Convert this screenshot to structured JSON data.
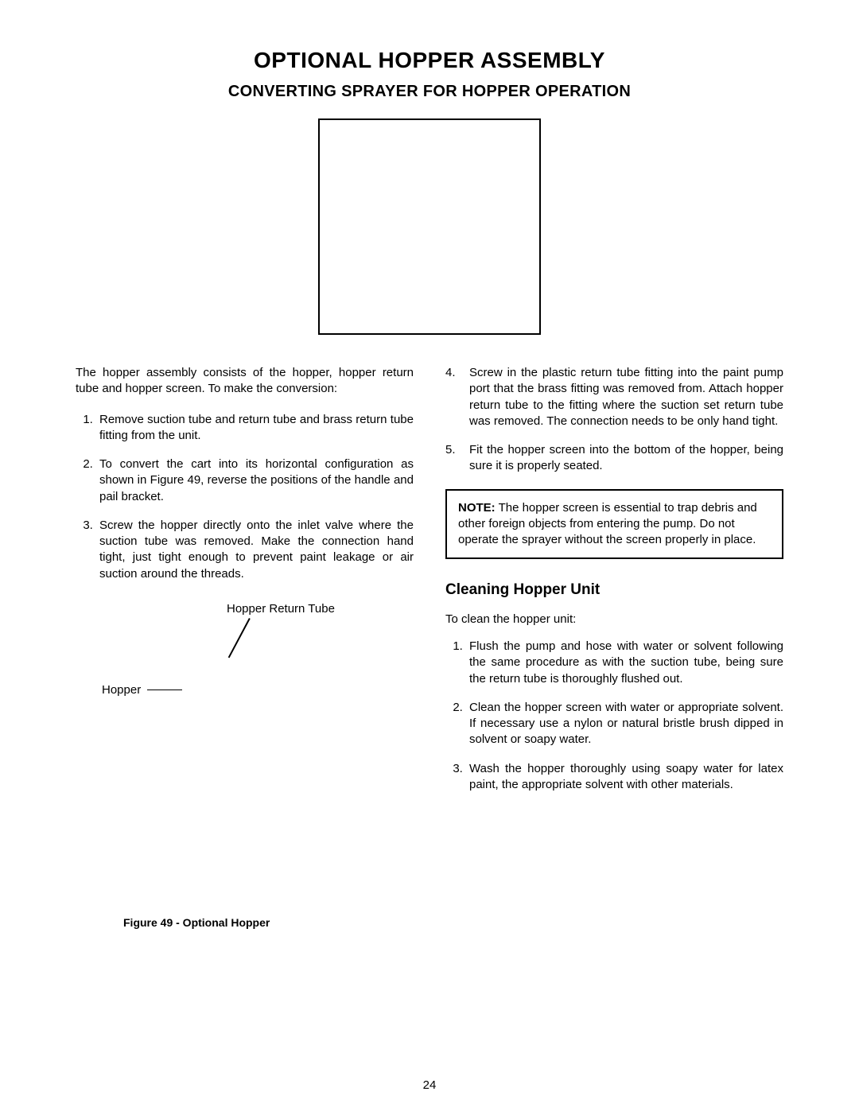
{
  "title": "OPTIONAL HOPPER ASSEMBLY",
  "subtitle": "CONVERTING SPRAYER FOR HOPPER OPERATION",
  "left": {
    "intro": "The hopper assembly consists of the hopper, hopper return tube and hopper screen. To make the conversion:",
    "items": [
      "Remove suction tube and return tube and brass return tube fitting from the unit.",
      "To convert the cart into its horizontal configuration as shown in Figure 49, reverse the positions of the handle and pail bracket.",
      "Screw the hopper directly onto the inlet valve where the suction tube was removed. Make the connection hand tight, just tight enough to prevent paint leakage or air suction around the threads."
    ],
    "diagram": {
      "hrt": "Hopper Return Tube",
      "hopper": "Hopper",
      "caption": "Figure 49 - Optional Hopper"
    }
  },
  "right": {
    "items": [
      "Screw in the plastic return tube fitting into the paint pump port that the brass fitting was removed from. Attach hopper return tube to the fitting where the suction set return tube was removed. The connection needs to be only hand tight.",
      "Fit the hopper screen into the bottom of the hopper, being sure it is properly seated."
    ],
    "note_label": "NOTE:",
    "note_text": "The hopper screen is essential to trap debris and other foreign objects from entering the pump. Do not operate the sprayer without the screen properly in place.",
    "clean_heading": "Cleaning Hopper Unit",
    "clean_intro": "To clean the hopper unit:",
    "clean_items": [
      "Flush the pump and hose with water or solvent following the same procedure as with the suction tube, being sure the return tube is thoroughly flushed out.",
      "Clean the hopper screen with water or appropriate solvent. If necessary use a nylon or natural bristle brush dipped in solvent or soapy water.",
      "Wash the hopper thoroughly using soapy water for latex paint, the appropriate solvent with other materials."
    ]
  },
  "page_number": "24"
}
